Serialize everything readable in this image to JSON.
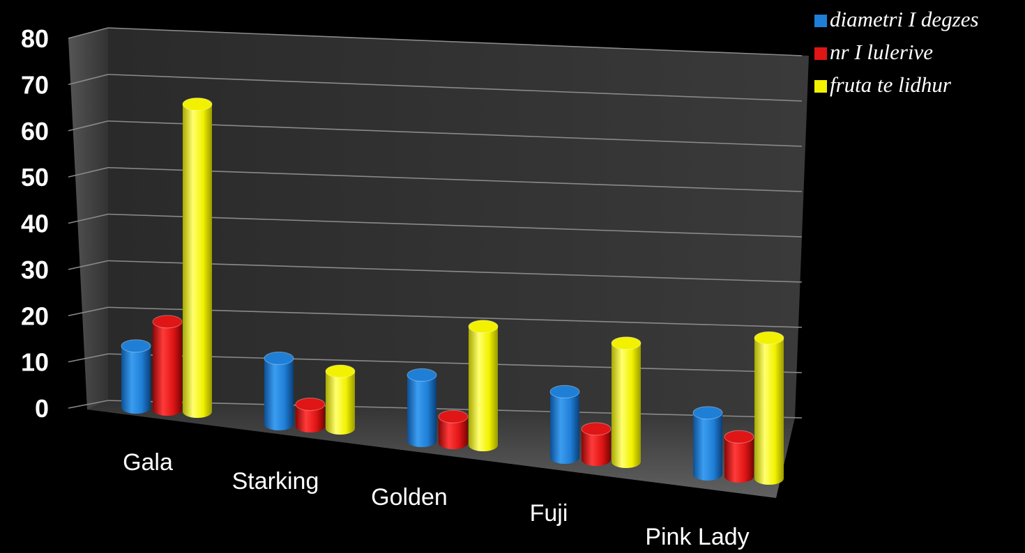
{
  "chart_data": {
    "type": "bar",
    "title": "",
    "xlabel": "",
    "ylabel": "",
    "ylim": [
      0,
      80
    ],
    "yticks": [
      "0",
      "10",
      "20",
      "30",
      "40",
      "50",
      "60",
      "70",
      "80"
    ],
    "categories": [
      "Gala",
      "Starking",
      "Golden",
      "Fuji",
      "Pink Lady"
    ],
    "series": [
      {
        "name": "diametri I degzes",
        "color": "#1f7fd6",
        "values": [
          14,
          15,
          15,
          15,
          14
        ]
      },
      {
        "name": "nr I lulerive",
        "color": "#e01515",
        "values": [
          20,
          5,
          6,
          7,
          9
        ]
      },
      {
        "name": "fruta te lidhur",
        "color": "#f2f200",
        "values": [
          70,
          13,
          27,
          27,
          32
        ]
      }
    ],
    "grid": true,
    "legend": "top-right",
    "style": "3d-cylinder"
  }
}
